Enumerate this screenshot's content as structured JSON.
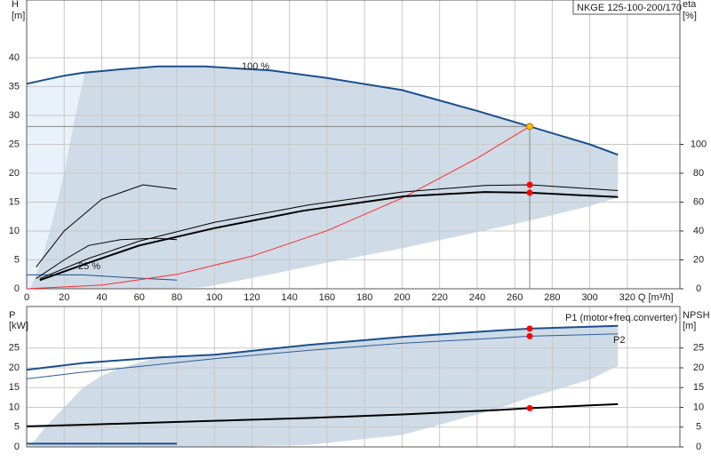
{
  "chart_data": [
    {
      "type": "line",
      "title": "NKGE 125-100-200/170",
      "y_label": "H",
      "y_unit": "[m]",
      "y2_label": "eta",
      "y2_unit": "[%]",
      "x_label": "Q [m³/h]",
      "xlim": [
        0,
        348
      ],
      "ylim": [
        0,
        50
      ],
      "y2lim": [
        0,
        200
      ],
      "xticks": [
        0,
        20,
        40,
        60,
        80,
        100,
        120,
        140,
        160,
        180,
        200,
        220,
        240,
        260,
        280,
        300,
        320
      ],
      "yticks": [
        0,
        5,
        10,
        15,
        20,
        25,
        30,
        35,
        40
      ],
      "y2ticks": [
        0,
        20,
        40,
        60,
        80,
        100
      ],
      "grid": true,
      "envelopes": [
        {
          "color": "#e9f1fa",
          "x": [
            0,
            10,
            20,
            31
          ],
          "upper": [
            35.5,
            36.2,
            36.9,
            37.4
          ],
          "lower": [
            0,
            0,
            0,
            0
          ]
        },
        {
          "color": "#cfdbe7",
          "x": [
            2,
            8,
            14,
            20,
            26,
            31,
            50,
            70,
            95,
            130,
            160,
            200,
            240,
            268,
            300,
            315
          ],
          "upper": [
            0,
            5,
            12,
            20,
            30,
            37.4,
            38,
            38.5,
            38.5,
            37.8,
            36.5,
            34.4,
            30.8,
            28.1,
            25,
            23.2
          ],
          "lower": [
            0,
            0,
            0,
            0,
            0,
            0,
            0,
            0,
            0.3,
            2.5,
            4.5,
            7,
            9.8,
            11.8,
            14.3,
            15.8
          ]
        }
      ],
      "series": [
        {
          "name": "100 %",
          "color": "#1b4f8e",
          "width": 2,
          "x": [
            0,
            10,
            20,
            30,
            50,
            70,
            95,
            130,
            160,
            200,
            240,
            268,
            300,
            315
          ],
          "values": [
            35.5,
            36.2,
            36.9,
            37.4,
            38,
            38.5,
            38.5,
            37.8,
            36.5,
            34.4,
            30.8,
            28.1,
            25,
            23.2
          ]
        },
        {
          "name": "25 %",
          "color": "#1b4f8e",
          "width": 1,
          "x": [
            0,
            30,
            50,
            80
          ],
          "values": [
            2.4,
            2.4,
            2.0,
            1.5
          ]
        },
        {
          "color": "#ff2a2a",
          "width": 1,
          "x": [
            0,
            40,
            80,
            120,
            160,
            200,
            240,
            268
          ],
          "values": [
            0,
            0.63,
            2.5,
            5.65,
            10.05,
            15.7,
            22.6,
            28.1
          ]
        },
        {
          "color": "#000000",
          "width": 2,
          "axis": "y2",
          "x": [
            7,
            33,
            60,
            100,
            147,
            201,
            244,
            268,
            315
          ],
          "values": [
            6,
            18,
            30,
            42,
            54,
            64,
            67,
            66.5,
            63.5
          ]
        },
        {
          "color": "#000000",
          "width": 1,
          "axis": "y2",
          "x": [
            7,
            33,
            60,
            100,
            150,
            200,
            244,
            268,
            315
          ],
          "values": [
            7,
            21,
            33,
            46,
            58,
            67,
            71.5,
            72,
            68
          ]
        },
        {
          "color": "#000000",
          "width": 1,
          "axis": "y2",
          "x": [
            5,
            20,
            40,
            62,
            80
          ],
          "values": [
            15,
            40,
            62,
            72,
            69
          ]
        },
        {
          "color": "#000000",
          "width": 1,
          "axis": "y2",
          "x": [
            5,
            20,
            33,
            50,
            69,
            80
          ],
          "values": [
            7,
            20,
            30,
            34,
            35,
            34
          ]
        }
      ],
      "points": [
        {
          "x": 268,
          "y": 28.1,
          "color": "#f5c400",
          "guides": true
        },
        {
          "x": 268,
          "y": 72,
          "axis": "y2",
          "color": "#ff0000"
        },
        {
          "x": 268,
          "y": 66.5,
          "axis": "y2",
          "color": "#ff0000"
        }
      ]
    },
    {
      "type": "line",
      "y_label": "P",
      "y_unit": "[kW]",
      "y2_label": "NPSH",
      "y2_unit": "[m]",
      "xlim": [
        0,
        348
      ],
      "ylim": [
        0,
        35.5
      ],
      "y2lim": [
        0,
        35.5
      ],
      "xticks": [
        0,
        20,
        40,
        60,
        80,
        100,
        120,
        140,
        160,
        180,
        200,
        220,
        240,
        260,
        280,
        300,
        320
      ],
      "yticks": [
        0,
        5,
        10,
        15,
        20,
        25
      ],
      "y2ticks": [
        0,
        5,
        10,
        15,
        20,
        25
      ],
      "grid": true,
      "envelopes": [
        {
          "color": "#cfdbe7",
          "x": [
            0,
            5,
            10,
            20,
            30,
            40,
            50,
            70,
            100,
            150,
            200,
            250,
            268,
            300,
            315
          ],
          "upper": [
            0,
            2,
            5,
            10,
            15,
            18,
            20,
            22.6,
            23.3,
            25.8,
            27.8,
            29.4,
            29.9,
            30.4,
            30.6
          ],
          "lower": [
            0,
            0,
            0,
            0,
            0,
            0,
            0,
            0,
            0,
            0.5,
            3,
            9.5,
            12.5,
            17,
            20.5
          ]
        }
      ],
      "series": [
        {
          "name": "P1 (motor+freq.converter)",
          "color": "#1b4f8e",
          "width": 2,
          "x": [
            0,
            30,
            50,
            70,
            100,
            150,
            200,
            250,
            268,
            300,
            315
          ],
          "values": [
            19.5,
            21.2,
            21.9,
            22.6,
            23.3,
            25.8,
            27.8,
            29.4,
            29.9,
            30.4,
            30.6
          ]
        },
        {
          "name": "P2",
          "color": "#2c5d9c",
          "width": 1,
          "x": [
            0,
            30,
            100,
            150,
            200,
            250,
            268,
            300,
            315
          ],
          "values": [
            17.2,
            18.9,
            22.3,
            24.4,
            26.2,
            27.5,
            28,
            28.4,
            28.6
          ]
        },
        {
          "color": "#000000",
          "width": 2,
          "axis": "y2",
          "x": [
            0,
            30,
            100,
            150,
            200,
            250,
            268,
            300,
            315
          ],
          "values": [
            5.2,
            5.6,
            6.6,
            7.3,
            8.2,
            9.3,
            9.8,
            10.5,
            10.8
          ]
        },
        {
          "color": "#1b4f8e",
          "width": 2,
          "x": [
            0,
            80
          ],
          "values": [
            0.8,
            0.8
          ]
        }
      ],
      "points": [
        {
          "x": 268,
          "y": 29.9,
          "color": "#ff0000"
        },
        {
          "x": 268,
          "y": 28,
          "color": "#ff0000"
        },
        {
          "x": 268,
          "y": 9.8,
          "axis": "y2",
          "color": "#ff0000"
        }
      ]
    }
  ]
}
